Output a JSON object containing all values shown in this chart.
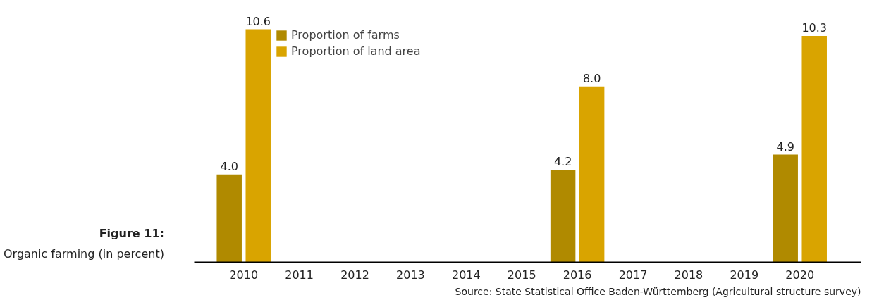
{
  "chart_data": {
    "type": "bar",
    "title": "Figure 11:",
    "subtitle": "Organic farming (in percent)",
    "categories": [
      "2010",
      "2011",
      "2012",
      "2013",
      "2014",
      "2015",
      "2016",
      "2017",
      "2018",
      "2019",
      "2020"
    ],
    "series": [
      {
        "name": "Proportion of farms",
        "color": "#b08a00",
        "values": [
          4.0,
          null,
          null,
          null,
          null,
          null,
          4.2,
          null,
          null,
          null,
          4.9
        ],
        "value_labels": [
          "4.0",
          null,
          null,
          null,
          null,
          null,
          "4.2",
          null,
          null,
          null,
          "4.9"
        ]
      },
      {
        "name": "Proportion of land area",
        "color": "#d9a400",
        "values": [
          10.6,
          null,
          null,
          null,
          null,
          null,
          8.0,
          null,
          null,
          null,
          10.3
        ],
        "value_labels": [
          "10.6",
          null,
          null,
          null,
          null,
          null,
          "8.0",
          null,
          null,
          null,
          "10.3"
        ]
      }
    ],
    "legend": "top left",
    "grid": false,
    "annotations": [
      "Source: State Statistical Office Baden-Württemberg (Agricultural structure survey)"
    ]
  }
}
